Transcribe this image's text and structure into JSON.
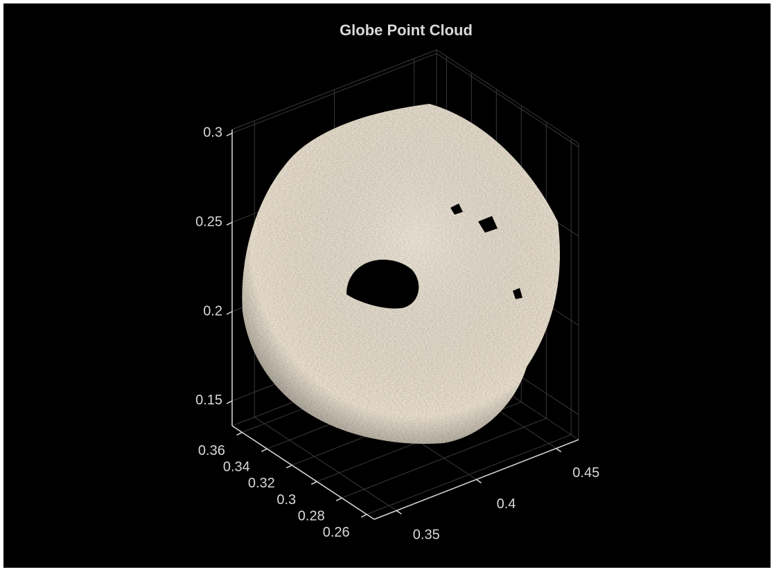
{
  "chart_data": {
    "type": "scatter3",
    "title": "Globe Point Cloud",
    "xlim": [
      0.336,
      0.464
    ],
    "xticks": [
      0.35,
      0.4,
      0.45
    ],
    "ylim": [
      0.254,
      0.368
    ],
    "yticks": [
      0.26,
      0.28,
      0.3,
      0.32,
      0.34,
      0.36
    ],
    "zlim": [
      0.136,
      0.302
    ],
    "zticks": [
      0.15,
      0.2,
      0.25,
      0.3
    ],
    "grid": true
  }
}
